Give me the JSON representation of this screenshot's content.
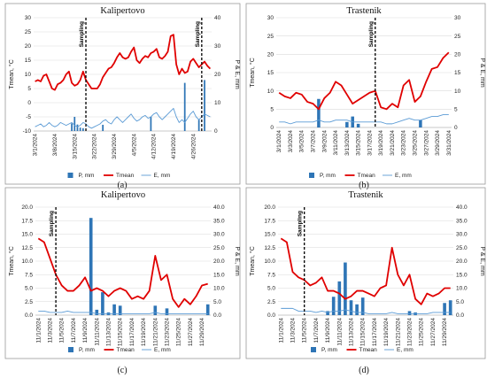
{
  "chart_data": [
    {
      "type": "line",
      "panel_label": "(a)",
      "title": "Kalipertovo",
      "ylabel": "Tmean, °C",
      "y2label": "P & E, mm",
      "ylim": [
        -10,
        30
      ],
      "y2lim": [
        0,
        40
      ],
      "yticks": [
        -10,
        -5,
        0,
        5,
        10,
        15,
        20,
        25,
        30
      ],
      "y2ticks": [
        0,
        10,
        20,
        30,
        40
      ],
      "start_date": "2024-03-01",
      "days": 63,
      "xtick_labels": [
        "3/1/2024",
        "3/8/2024",
        "3/15/2024",
        "3/22/2024",
        "3/29/2024",
        "4/5/2024",
        "4/12/2024",
        "4/19/2024",
        "4/26/2024"
      ],
      "sampling_label": "Sampling",
      "sampling_dates": [
        "3/19/2024",
        "4/29/2024"
      ],
      "series": [
        {
          "name": "P, mm",
          "kind": "bar",
          "axis": "y2",
          "color": "#2e75b6",
          "dates": [
            "3/14/2024",
            "3/15/2024",
            "3/16/2024",
            "3/17/2024",
            "3/18/2024",
            "3/25/2024",
            "4/11/2024",
            "4/23/2024",
            "4/28/2024",
            "4/30/2024"
          ],
          "values": [
            2.7,
            5,
            2.3,
            1.2,
            1,
            2.2,
            5,
            17,
            4,
            18
          ]
        },
        {
          "name": "Tmean",
          "kind": "line",
          "axis": "y",
          "color": "#e00000",
          "width": 1.8,
          "values": [
            7.5,
            8,
            7.5,
            9.5,
            10,
            7.5,
            5,
            4.5,
            6.5,
            7,
            8,
            10,
            11,
            7,
            6,
            6.5,
            8,
            11,
            8,
            6.5,
            5,
            5,
            5,
            6.5,
            9,
            10.5,
            12,
            12.5,
            14,
            16,
            17.5,
            16,
            15.5,
            16,
            18,
            19.5,
            15,
            14,
            15.5,
            16.5,
            16,
            17.5,
            18,
            19,
            16,
            15.5,
            16.5,
            18,
            23.5,
            24,
            13.5,
            10,
            12,
            10.5,
            11,
            14.5,
            15.5,
            14,
            12.5,
            13.5,
            14.5,
            13,
            12
          ]
        },
        {
          "name": "E, mm",
          "kind": "line",
          "axis": "y2",
          "color": "#5b9bd5",
          "width": 0.9,
          "values": [
            1.5,
            2,
            2.5,
            1.5,
            2,
            3,
            2,
            1.5,
            2,
            3,
            2.5,
            2,
            2.5,
            3,
            2,
            1.5,
            2,
            3,
            2.5,
            1.5,
            1,
            1.5,
            2,
            2.5,
            3.5,
            4,
            3,
            2.5,
            4,
            5,
            4,
            3,
            4,
            5,
            6,
            4.5,
            3.5,
            4,
            5,
            5.5,
            4.5,
            5,
            6,
            6.5,
            5,
            4,
            5,
            6,
            7,
            8,
            5,
            3,
            4,
            3,
            4.5,
            6,
            7,
            5,
            4,
            5,
            6,
            5.5,
            5
          ]
        }
      ]
    },
    {
      "type": "line",
      "panel_label": "(b)",
      "title": "Trastenik",
      "ylabel": "Tmean, °C",
      "y2label": "P & E, mm",
      "ylim": [
        0,
        30
      ],
      "y2lim": [
        0,
        30
      ],
      "yticks": [
        0,
        5,
        10,
        15,
        20,
        25,
        30
      ],
      "y2ticks": [
        0,
        5,
        10,
        15,
        20,
        25,
        30
      ],
      "start_date": "2024-03-01",
      "days": 31,
      "xtick_labels": [
        "3/1/2024",
        "3/3/2024",
        "3/5/2024",
        "3/7/2024",
        "3/9/2024",
        "3/11/2024",
        "3/13/2024",
        "3/15/2024",
        "3/17/2024",
        "3/19/2024",
        "3/21/2024",
        "3/23/2024",
        "3/25/2024",
        "3/27/2024",
        "3/29/2024",
        "3/31/2024"
      ],
      "sampling_label": "Sampling",
      "sampling_dates": [
        "3/18/2024"
      ],
      "series": [
        {
          "name": "P, mm",
          "kind": "bar",
          "axis": "y2",
          "color": "#2e75b6",
          "dates": [
            "3/8/2024",
            "3/13/2024",
            "3/14/2024",
            "3/15/2024",
            "3/26/2024"
          ],
          "values": [
            7.8,
            1.5,
            3,
            1,
            2
          ]
        },
        {
          "name": "Tmean",
          "kind": "line",
          "axis": "y",
          "color": "#e00000",
          "width": 1.8,
          "values": [
            9.5,
            8.5,
            8,
            9.5,
            9,
            7,
            6.5,
            5,
            8,
            9.5,
            12.5,
            11.5,
            9,
            6.5,
            7.5,
            8.5,
            9.5,
            10,
            5.5,
            5,
            6.5,
            5.5,
            11.5,
            13,
            7,
            8.5,
            12.5,
            16,
            16.5,
            19,
            20.5
          ]
        },
        {
          "name": "E, mm",
          "kind": "line",
          "axis": "y2",
          "color": "#5b9bd5",
          "width": 0.9,
          "values": [
            1.5,
            1.5,
            1,
            1.5,
            1.5,
            1.5,
            1.5,
            2,
            1.5,
            1.5,
            2,
            2,
            2,
            1.5,
            1.5,
            1.5,
            1.5,
            1.5,
            1.5,
            1,
            1,
            1.5,
            2,
            2.5,
            2,
            2,
            2.5,
            3,
            3,
            3.5,
            3.5
          ]
        }
      ]
    },
    {
      "type": "line",
      "panel_label": "(c)",
      "title": "Kalipertovo",
      "ylabel": "Tmean, °C",
      "y2label": "P & E, mm",
      "ylim": [
        0,
        20
      ],
      "y2lim": [
        0,
        40
      ],
      "yticks": [
        0.0,
        2.5,
        5.0,
        7.5,
        10.0,
        12.5,
        15.0,
        17.5,
        20.0
      ],
      "ytick_labels": [
        "0.0",
        "2.5",
        "5.0",
        "7.5",
        "10.0",
        "12.5",
        "15.0",
        "17.5",
        "20.0"
      ],
      "y2ticks": [
        0,
        5,
        10,
        15,
        20,
        25,
        30,
        35,
        40
      ],
      "y2tick_labels": [
        "0.0",
        "5.0",
        "10.0",
        "15.0",
        "20.0",
        "25.0",
        "30.0",
        "35.0",
        "40.0"
      ],
      "start_date": "2024-11-01",
      "days": 30,
      "xtick_labels": [
        "11/1/2024",
        "11/3/2024",
        "11/5/2024",
        "11/7/2024",
        "11/9/2024",
        "11/11/2024",
        "11/13/2024",
        "11/15/2024",
        "11/17/2024",
        "11/19/2024",
        "11/21/2024",
        "11/23/2024",
        "11/25/2024",
        "11/27/2024",
        "11/29/2024"
      ],
      "sampling_label": "Sampling",
      "sampling_dates": [
        "11/4/2024"
      ],
      "series": [
        {
          "name": "P, mm",
          "kind": "bar",
          "axis": "y2",
          "color": "#2e75b6",
          "dates": [
            "11/10/2024",
            "11/11/2024",
            "11/12/2024",
            "11/13/2024",
            "11/14/2024",
            "11/15/2024",
            "11/21/2024",
            "11/23/2024",
            "11/30/2024"
          ],
          "values": [
            36,
            2,
            8.5,
            1,
            4,
            3.5,
            3.5,
            2.5,
            4
          ]
        },
        {
          "name": "Tmean",
          "kind": "line",
          "axis": "y",
          "color": "#e00000",
          "width": 1.8,
          "values": [
            14.2,
            13.5,
            10.5,
            7.5,
            5.5,
            4.5,
            4.5,
            5.5,
            7,
            4.5,
            5,
            4.5,
            3.5,
            4.5,
            5,
            4.5,
            3,
            3.5,
            3,
            4.5,
            11,
            6.5,
            7.5,
            3,
            1.5,
            3,
            2,
            3.5,
            5.5,
            5.8
          ]
        },
        {
          "name": "E, mm",
          "kind": "line",
          "axis": "y2",
          "color": "#5b9bd5",
          "width": 0.9,
          "values": [
            1.5,
            1.5,
            1,
            1,
            1,
            1.5,
            1,
            1,
            1,
            1,
            0.5,
            0.5,
            0.5,
            0.5,
            0.5,
            0.5,
            0.5,
            0.5,
            0.5,
            0.5,
            1,
            0.5,
            0.5,
            0.5,
            0.5,
            0.5,
            0.5,
            0.5,
            0.5,
            0.5
          ]
        }
      ]
    },
    {
      "type": "line",
      "panel_label": "(d)",
      "title": "Trastenik",
      "ylabel": "Tmean, °C",
      "y2label": "P & E, mm",
      "ylim": [
        0,
        20
      ],
      "y2lim": [
        0,
        40
      ],
      "yticks": [
        0.0,
        2.5,
        5.0,
        7.5,
        10.0,
        12.5,
        15.0,
        17.5,
        20.0
      ],
      "ytick_labels": [
        "0.0",
        "2.5",
        "5.0",
        "7.5",
        "10.0",
        "12.5",
        "15.0",
        "17.5",
        "20.0"
      ],
      "y2ticks": [
        0,
        5,
        10,
        15,
        20,
        25,
        30,
        35,
        40
      ],
      "y2tick_labels": [
        "0.0",
        "5.0",
        "10.0",
        "15.0",
        "20.0",
        "25.0",
        "30.0",
        "35.0",
        "40.0"
      ],
      "start_date": "2024-11-01",
      "days": 30,
      "xtick_labels": [
        "11/1/2024",
        "11/3/2024",
        "11/5/2024",
        "11/7/2024",
        "11/9/2024",
        "11/11/2024",
        "11/13/2024",
        "11/15/2024",
        "11/17/2024",
        "11/19/2024",
        "11/21/2024",
        "11/23/2024",
        "11/25/2024",
        "11/27/2024",
        "11/29/2024"
      ],
      "sampling_label": "Sampling",
      "sampling_dates": [
        "11/5/2024"
      ],
      "series": [
        {
          "name": "P, mm",
          "kind": "bar",
          "axis": "y2",
          "color": "#2e75b6",
          "dates": [
            "11/9/2024",
            "11/10/2024",
            "11/11/2024",
            "11/12/2024",
            "11/13/2024",
            "11/14/2024",
            "11/15/2024",
            "11/23/2024",
            "11/24/2024",
            "11/29/2024",
            "11/30/2024"
          ],
          "values": [
            1.5,
            6.8,
            12.5,
            19.5,
            5.5,
            4,
            6.5,
            1.5,
            1,
            4.5,
            5.5
          ]
        },
        {
          "name": "Tmean",
          "kind": "line",
          "axis": "y",
          "color": "#e00000",
          "width": 1.8,
          "values": [
            14.2,
            13.5,
            8,
            7,
            6.5,
            5.5,
            6,
            7,
            4.5,
            4.5,
            4,
            3,
            3.5,
            4.5,
            4.5,
            4,
            3.5,
            5,
            5.5,
            12.5,
            7.5,
            5.5,
            7.5,
            3,
            2,
            4,
            3.5,
            4,
            5,
            5
          ]
        },
        {
          "name": "E, mm",
          "kind": "line",
          "axis": "y2",
          "color": "#5b9bd5",
          "width": 0.9,
          "values": [
            2.5,
            2.5,
            2.5,
            1.5,
            1.5,
            1.5,
            1,
            1.5,
            1,
            1.5,
            1.5,
            2,
            1.5,
            1,
            1,
            0.5,
            0.5,
            0.5,
            0.5,
            1,
            0.5,
            0.5,
            0.5,
            0.5,
            0.5,
            0.5,
            1,
            1,
            1,
            1
          ]
        }
      ]
    }
  ]
}
